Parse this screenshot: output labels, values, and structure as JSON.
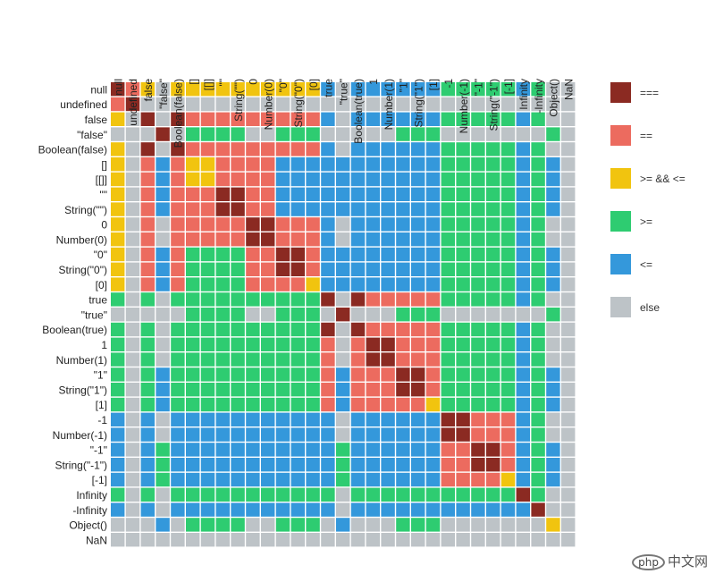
{
  "chart_data": {
    "type": "heatmap",
    "title": "",
    "labels": [
      "null",
      "undefined",
      "false",
      "\"false\"",
      "Boolean(false)",
      "[]",
      "[[]]",
      "\"\"",
      "String(\"\")",
      "0",
      "Number(0)",
      "\"0\"",
      "String(\"0\")",
      "[0]",
      "true",
      "\"true\"",
      "Boolean(true)",
      "1",
      "Number(1)",
      "\"1\"",
      "String(\"1\")",
      "[1]",
      "-1",
      "Number(-1)",
      "\"-1\"",
      "String(\"-1\")",
      "[-1]",
      "Infinity",
      "-Infinity",
      "Object()",
      "NaN"
    ],
    "categories": [
      "===",
      "==",
      ">= && <=",
      ">=",
      "<=",
      "else"
    ],
    "colors": {
      "===": "#8b2a22",
      "==": "#ec6b5f",
      ">= && <=": "#f1c40f",
      ">=": "#2ecc71",
      "<=": "#3498db",
      "else": "#bdc3c7"
    },
    "rows": [
      [
        "===",
        "==",
        "Y",
        "E",
        "Y",
        "Y",
        "Y",
        "Y",
        "Y",
        "Y",
        "Y",
        "Y",
        "Y",
        "Y",
        "L",
        "E",
        "L",
        "L",
        "L",
        "L",
        "L",
        "L",
        "G",
        "G",
        "G",
        "G",
        "G",
        "L",
        "G",
        "E",
        "E"
      ],
      [
        "==",
        "===",
        "E",
        "E",
        "E",
        "E",
        "E",
        "E",
        "E",
        "E",
        "E",
        "E",
        "E",
        "E",
        "E",
        "E",
        "E",
        "E",
        "E",
        "E",
        "E",
        "E",
        "E",
        "E",
        "E",
        "E",
        "E",
        "E",
        "E",
        "E",
        "E"
      ],
      [
        "Y",
        "E",
        "===",
        "E",
        "===",
        "==",
        "==",
        "==",
        "==",
        "==",
        "==",
        "==",
        "==",
        "==",
        "L",
        "E",
        "L",
        "L",
        "L",
        "L",
        "L",
        "L",
        "G",
        "G",
        "G",
        "G",
        "G",
        "L",
        "G",
        "E",
        "E"
      ],
      [
        "E",
        "E",
        "E",
        "===",
        "E",
        "G",
        "G",
        "G",
        "G",
        "E",
        "E",
        "G",
        "G",
        "G",
        "E",
        "E",
        "E",
        "E",
        "E",
        "G",
        "G",
        "G",
        "E",
        "E",
        "E",
        "E",
        "E",
        "E",
        "E",
        "G",
        "E"
      ],
      [
        "Y",
        "E",
        "===",
        "E",
        "===",
        "==",
        "==",
        "==",
        "==",
        "==",
        "==",
        "==",
        "==",
        "==",
        "L",
        "E",
        "L",
        "L",
        "L",
        "L",
        "L",
        "L",
        "G",
        "G",
        "G",
        "G",
        "G",
        "L",
        "G",
        "E",
        "E"
      ],
      [
        "Y",
        "E",
        "==",
        "L",
        "==",
        "Y",
        "Y",
        "==",
        "==",
        "==",
        "==",
        "L",
        "L",
        "L",
        "L",
        "L",
        "L",
        "L",
        "L",
        "L",
        "L",
        "L",
        "G",
        "G",
        "G",
        "G",
        "G",
        "L",
        "G",
        "L",
        "E"
      ],
      [
        "Y",
        "E",
        "==",
        "L",
        "==",
        "Y",
        "Y",
        "==",
        "==",
        "==",
        "==",
        "L",
        "L",
        "L",
        "L",
        "L",
        "L",
        "L",
        "L",
        "L",
        "L",
        "L",
        "G",
        "G",
        "G",
        "G",
        "G",
        "L",
        "G",
        "L",
        "E"
      ],
      [
        "Y",
        "E",
        "==",
        "L",
        "==",
        "==",
        "==",
        "===",
        "===",
        "==",
        "==",
        "L",
        "L",
        "L",
        "L",
        "L",
        "L",
        "L",
        "L",
        "L",
        "L",
        "L",
        "G",
        "G",
        "G",
        "G",
        "G",
        "L",
        "G",
        "L",
        "E"
      ],
      [
        "Y",
        "E",
        "==",
        "L",
        "==",
        "==",
        "==",
        "===",
        "===",
        "==",
        "==",
        "L",
        "L",
        "L",
        "L",
        "L",
        "L",
        "L",
        "L",
        "L",
        "L",
        "L",
        "G",
        "G",
        "G",
        "G",
        "G",
        "L",
        "G",
        "L",
        "E"
      ],
      [
        "Y",
        "E",
        "==",
        "E",
        "==",
        "==",
        "==",
        "==",
        "==",
        "===",
        "===",
        "==",
        "==",
        "==",
        "L",
        "E",
        "L",
        "L",
        "L",
        "L",
        "L",
        "L",
        "G",
        "G",
        "G",
        "G",
        "G",
        "L",
        "G",
        "E",
        "E"
      ],
      [
        "Y",
        "E",
        "==",
        "E",
        "==",
        "==",
        "==",
        "==",
        "==",
        "===",
        "===",
        "==",
        "==",
        "==",
        "L",
        "E",
        "L",
        "L",
        "L",
        "L",
        "L",
        "L",
        "G",
        "G",
        "G",
        "G",
        "G",
        "L",
        "G",
        "E",
        "E"
      ],
      [
        "Y",
        "E",
        "==",
        "L",
        "==",
        "G",
        "G",
        "G",
        "G",
        "==",
        "==",
        "===",
        "===",
        "==",
        "L",
        "L",
        "L",
        "L",
        "L",
        "L",
        "L",
        "L",
        "G",
        "G",
        "G",
        "G",
        "G",
        "L",
        "G",
        "L",
        "E"
      ],
      [
        "Y",
        "E",
        "==",
        "L",
        "==",
        "G",
        "G",
        "G",
        "G",
        "==",
        "==",
        "===",
        "===",
        "==",
        "L",
        "L",
        "L",
        "L",
        "L",
        "L",
        "L",
        "L",
        "G",
        "G",
        "G",
        "G",
        "G",
        "L",
        "G",
        "L",
        "E"
      ],
      [
        "Y",
        "E",
        "==",
        "L",
        "==",
        "G",
        "G",
        "G",
        "G",
        "==",
        "==",
        "==",
        "==",
        "Y",
        "L",
        "L",
        "L",
        "L",
        "L",
        "L",
        "L",
        "L",
        "G",
        "G",
        "G",
        "G",
        "G",
        "L",
        "G",
        "L",
        "E"
      ],
      [
        "G",
        "E",
        "G",
        "E",
        "G",
        "G",
        "G",
        "G",
        "G",
        "G",
        "G",
        "G",
        "G",
        "G",
        "===",
        "E",
        "===",
        "==",
        "==",
        "==",
        "==",
        "==",
        "G",
        "G",
        "G",
        "G",
        "G",
        "L",
        "G",
        "E",
        "E"
      ],
      [
        "E",
        "E",
        "E",
        "E",
        "E",
        "G",
        "G",
        "G",
        "G",
        "E",
        "E",
        "G",
        "G",
        "G",
        "E",
        "===",
        "E",
        "E",
        "E",
        "G",
        "G",
        "G",
        "E",
        "E",
        "E",
        "E",
        "E",
        "E",
        "E",
        "G",
        "E"
      ],
      [
        "G",
        "E",
        "G",
        "E",
        "G",
        "G",
        "G",
        "G",
        "G",
        "G",
        "G",
        "G",
        "G",
        "G",
        "===",
        "E",
        "===",
        "==",
        "==",
        "==",
        "==",
        "==",
        "G",
        "G",
        "G",
        "G",
        "G",
        "L",
        "G",
        "E",
        "E"
      ],
      [
        "G",
        "E",
        "G",
        "E",
        "G",
        "G",
        "G",
        "G",
        "G",
        "G",
        "G",
        "G",
        "G",
        "G",
        "==",
        "E",
        "==",
        "===",
        "===",
        "==",
        "==",
        "==",
        "G",
        "G",
        "G",
        "G",
        "G",
        "L",
        "G",
        "E",
        "E"
      ],
      [
        "G",
        "E",
        "G",
        "E",
        "G",
        "G",
        "G",
        "G",
        "G",
        "G",
        "G",
        "G",
        "G",
        "G",
        "==",
        "E",
        "==",
        "===",
        "===",
        "==",
        "==",
        "==",
        "G",
        "G",
        "G",
        "G",
        "G",
        "L",
        "G",
        "E",
        "E"
      ],
      [
        "G",
        "E",
        "G",
        "L",
        "G",
        "G",
        "G",
        "G",
        "G",
        "G",
        "G",
        "G",
        "G",
        "G",
        "==",
        "L",
        "==",
        "==",
        "==",
        "===",
        "===",
        "==",
        "G",
        "G",
        "G",
        "G",
        "G",
        "L",
        "G",
        "L",
        "E"
      ],
      [
        "G",
        "E",
        "G",
        "L",
        "G",
        "G",
        "G",
        "G",
        "G",
        "G",
        "G",
        "G",
        "G",
        "G",
        "==",
        "L",
        "==",
        "==",
        "==",
        "===",
        "===",
        "==",
        "G",
        "G",
        "G",
        "G",
        "G",
        "L",
        "G",
        "L",
        "E"
      ],
      [
        "G",
        "E",
        "G",
        "L",
        "G",
        "G",
        "G",
        "G",
        "G",
        "G",
        "G",
        "G",
        "G",
        "G",
        "==",
        "L",
        "==",
        "==",
        "==",
        "==",
        "==",
        "Y",
        "G",
        "G",
        "G",
        "G",
        "G",
        "L",
        "G",
        "L",
        "E"
      ],
      [
        "L",
        "E",
        "L",
        "E",
        "L",
        "L",
        "L",
        "L",
        "L",
        "L",
        "L",
        "L",
        "L",
        "L",
        "L",
        "E",
        "L",
        "L",
        "L",
        "L",
        "L",
        "L",
        "===",
        "===",
        "==",
        "==",
        "==",
        "L",
        "G",
        "E",
        "E"
      ],
      [
        "L",
        "E",
        "L",
        "E",
        "L",
        "L",
        "L",
        "L",
        "L",
        "L",
        "L",
        "L",
        "L",
        "L",
        "L",
        "E",
        "L",
        "L",
        "L",
        "L",
        "L",
        "L",
        "===",
        "===",
        "==",
        "==",
        "==",
        "L",
        "G",
        "E",
        "E"
      ],
      [
        "L",
        "E",
        "L",
        "G",
        "L",
        "L",
        "L",
        "L",
        "L",
        "L",
        "L",
        "L",
        "L",
        "L",
        "L",
        "G",
        "L",
        "L",
        "L",
        "L",
        "L",
        "L",
        "==",
        "==",
        "===",
        "===",
        "==",
        "L",
        "G",
        "L",
        "E"
      ],
      [
        "L",
        "E",
        "L",
        "G",
        "L",
        "L",
        "L",
        "L",
        "L",
        "L",
        "L",
        "L",
        "L",
        "L",
        "L",
        "G",
        "L",
        "L",
        "L",
        "L",
        "L",
        "L",
        "==",
        "==",
        "===",
        "===",
        "==",
        "L",
        "G",
        "L",
        "E"
      ],
      [
        "L",
        "E",
        "L",
        "G",
        "L",
        "L",
        "L",
        "L",
        "L",
        "L",
        "L",
        "L",
        "L",
        "L",
        "L",
        "G",
        "L",
        "L",
        "L",
        "L",
        "L",
        "L",
        "==",
        "==",
        "==",
        "==",
        "Y",
        "L",
        "G",
        "L",
        "E"
      ],
      [
        "G",
        "E",
        "G",
        "E",
        "G",
        "G",
        "G",
        "G",
        "G",
        "G",
        "G",
        "G",
        "G",
        "G",
        "G",
        "E",
        "G",
        "G",
        "G",
        "G",
        "G",
        "G",
        "G",
        "G",
        "G",
        "G",
        "G",
        "===",
        "G",
        "E",
        "E"
      ],
      [
        "L",
        "E",
        "L",
        "E",
        "L",
        "L",
        "L",
        "L",
        "L",
        "L",
        "L",
        "L",
        "L",
        "L",
        "L",
        "E",
        "L",
        "L",
        "L",
        "L",
        "L",
        "L",
        "L",
        "L",
        "L",
        "L",
        "L",
        "L",
        "===",
        "E",
        "E"
      ],
      [
        "E",
        "E",
        "E",
        "L",
        "E",
        "G",
        "G",
        "G",
        "G",
        "E",
        "E",
        "G",
        "G",
        "G",
        "E",
        "L",
        "E",
        "E",
        "E",
        "G",
        "G",
        "G",
        "E",
        "E",
        "E",
        "E",
        "E",
        "E",
        "E",
        "Y",
        "E"
      ],
      [
        "E",
        "E",
        "E",
        "E",
        "E",
        "E",
        "E",
        "E",
        "E",
        "E",
        "E",
        "E",
        "E",
        "E",
        "E",
        "E",
        "E",
        "E",
        "E",
        "E",
        "E",
        "E",
        "E",
        "E",
        "E",
        "E",
        "E",
        "E",
        "E",
        "E",
        "E"
      ]
    ],
    "legend": [
      "===",
      "==",
      ">= && <=",
      ">=",
      "<=",
      "else"
    ]
  },
  "watermark": {
    "badge": "php",
    "text": "中文网"
  }
}
